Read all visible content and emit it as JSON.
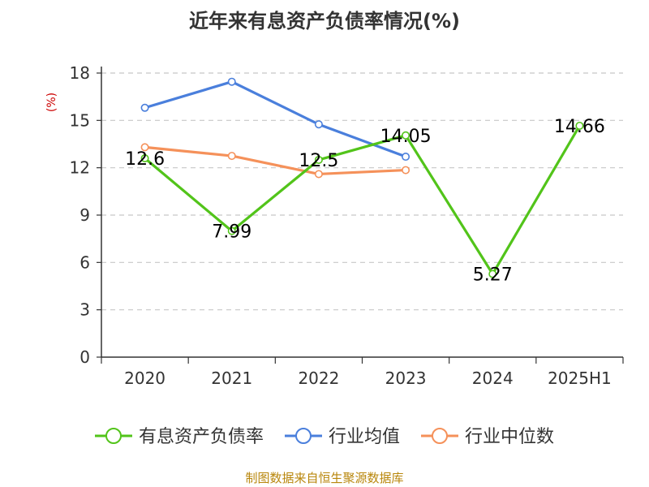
{
  "chart_data": {
    "type": "line",
    "title": "近年来有息资产负债率情况(%)",
    "ylabel": "(%)",
    "categories": [
      "2020",
      "2021",
      "2022",
      "2023",
      "2024",
      "2025H1"
    ],
    "ylim": [
      0,
      18
    ],
    "yticks": [
      "0",
      "3",
      "6",
      "9",
      "12",
      "15",
      "18"
    ],
    "grid": "horizontal-dashed",
    "legend_position": "bottom",
    "series": [
      {
        "name": "有息资产负债率",
        "color": "#52c41a",
        "values": [
          12.6,
          7.99,
          12.5,
          14.05,
          5.27,
          14.66
        ],
        "labels": [
          "12.6",
          "7.99",
          "12.5",
          "14.05",
          "5.27",
          "14.66"
        ]
      },
      {
        "name": "行业均值",
        "color": "#4a7fdc",
        "values": [
          15.8,
          17.45,
          14.75,
          12.7,
          null,
          null
        ]
      },
      {
        "name": "行业中位数",
        "color": "#f5915a",
        "values": [
          13.3,
          12.75,
          11.6,
          11.85,
          null,
          null
        ]
      }
    ]
  },
  "source": "制图数据来自恒生聚源数据库"
}
